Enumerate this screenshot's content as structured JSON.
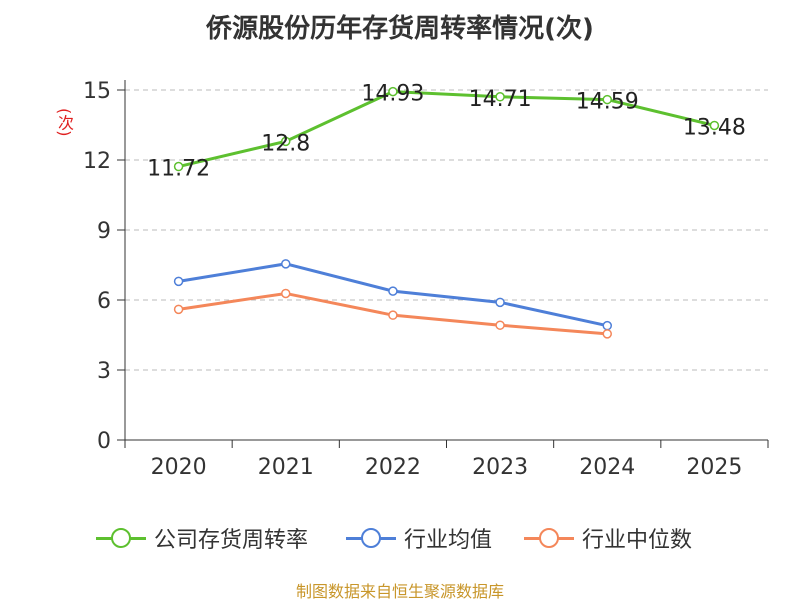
{
  "chart_data": {
    "type": "line",
    "title": "侨源股份历年存货周转率情况(次)",
    "ylabel": "(次)",
    "categories": [
      "2020",
      "2021",
      "2022",
      "2023",
      "2024",
      "2025"
    ],
    "ylim": [
      0,
      15
    ],
    "yticks": [
      0,
      3,
      6,
      9,
      12,
      15
    ],
    "grid": true,
    "legend_position": "bottom",
    "series": [
      {
        "name": "公司存货周转率",
        "color": "#5dc02f",
        "values": [
          11.72,
          12.8,
          14.93,
          14.71,
          14.59,
          13.48
        ],
        "labels": [
          "11.72",
          "12.8",
          "14.93",
          "14.71",
          "14.59",
          "13.48"
        ]
      },
      {
        "name": "行业均值",
        "color": "#4e7fd8",
        "values": [
          6.8,
          7.55,
          6.38,
          5.9,
          4.9,
          null
        ]
      },
      {
        "name": "行业中位数",
        "color": "#f4875a",
        "values": [
          5.6,
          6.28,
          5.35,
          4.92,
          4.55,
          null
        ]
      }
    ]
  },
  "source": "制图数据来自恒生聚源数据库"
}
